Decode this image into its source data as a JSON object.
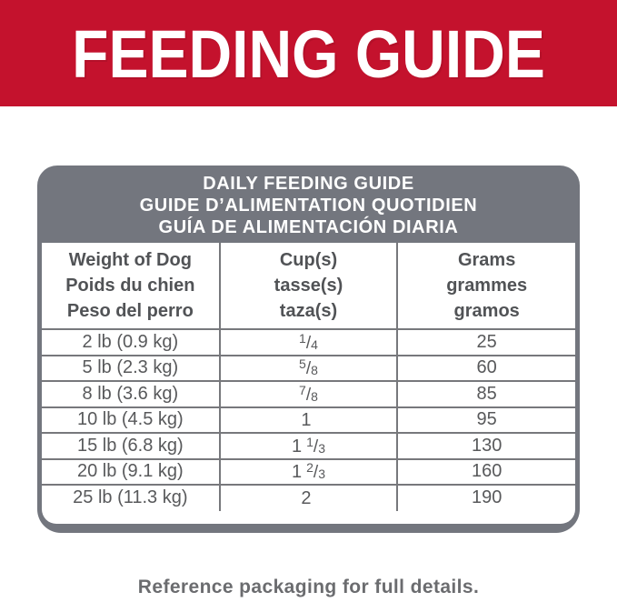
{
  "banner": {
    "title": "FEEDING GUIDE"
  },
  "card": {
    "header_lines": [
      "DAILY FEEDING GUIDE",
      "GUIDE D’ALIMENTATION QUOTIDIEN",
      "GUÍA DE ALIMENTACIÓN DIARIA"
    ]
  },
  "table": {
    "columns": [
      {
        "lines": [
          "Weight of Dog",
          "Poids du chien",
          "Peso del perro"
        ]
      },
      {
        "lines": [
          "Cup(s)",
          "tasse(s)",
          "taza(s)"
        ]
      },
      {
        "lines": [
          "Grams",
          "grammes",
          "gramos"
        ]
      }
    ],
    "rows": [
      {
        "weight": "2 lb (0.9 kg)",
        "cups": {
          "whole": "",
          "num": "1",
          "slash": "/",
          "den": "4"
        },
        "grams": "25"
      },
      {
        "weight": "5 lb (2.3 kg)",
        "cups": {
          "whole": "",
          "num": "5",
          "slash": "/",
          "den": "8"
        },
        "grams": "60"
      },
      {
        "weight": "8 lb (3.6 kg)",
        "cups": {
          "whole": "",
          "num": "7",
          "slash": "/",
          "den": "8"
        },
        "grams": "85"
      },
      {
        "weight": "10 lb (4.5 kg)",
        "cups": {
          "whole": "1",
          "num": "",
          "slash": "",
          "den": ""
        },
        "grams": "95"
      },
      {
        "weight": "15 lb (6.8 kg)",
        "cups": {
          "whole": "1",
          "num": "1",
          "slash": "/",
          "den": "3"
        },
        "grams": "130"
      },
      {
        "weight": "20 lb (9.1 kg)",
        "cups": {
          "whole": "1",
          "num": "2",
          "slash": "/",
          "den": "3"
        },
        "grams": "160"
      },
      {
        "weight": "25 lb (11.3 kg)",
        "cups": {
          "whole": "2",
          "num": "",
          "slash": "",
          "den": ""
        },
        "grams": "190"
      }
    ]
  },
  "footer": {
    "note": "Reference packaging for full details."
  },
  "colors": {
    "banner_red": "#C4122D",
    "table_gray": "#73767E",
    "line_gray": "#77787C",
    "header_text": "#515356",
    "body_text": "#58595B",
    "footer_text": "#6B6C6F"
  }
}
